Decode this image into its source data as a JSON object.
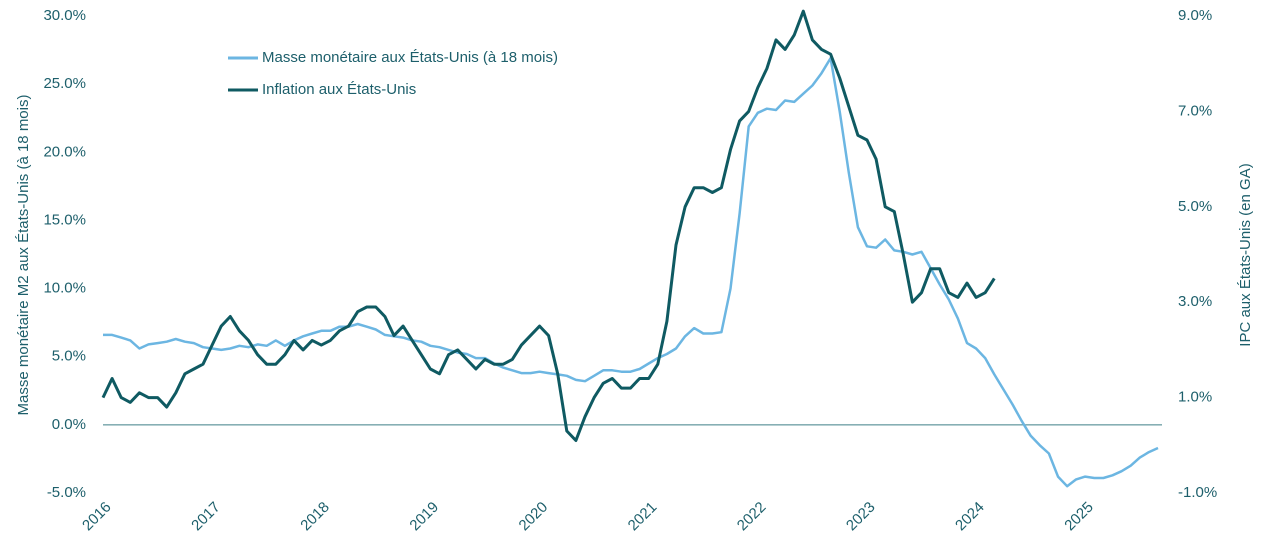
{
  "chart_data": {
    "type": "line",
    "y_label": "Masse monétaire M2 aux États-Unis (à 18 mois)",
    "y2_label": "IPC aux États-Unis (en GA)",
    "categories": [
      "2016",
      null,
      null,
      null,
      null,
      null,
      null,
      null,
      null,
      null,
      null,
      null,
      "2017",
      null,
      null,
      null,
      null,
      null,
      null,
      null,
      null,
      null,
      null,
      null,
      "2018",
      null,
      null,
      null,
      null,
      null,
      null,
      null,
      null,
      null,
      null,
      null,
      "2019",
      null,
      null,
      null,
      null,
      null,
      null,
      null,
      null,
      null,
      null,
      null,
      "2020",
      null,
      null,
      null,
      null,
      null,
      null,
      null,
      null,
      null,
      null,
      null,
      "2021",
      null,
      null,
      null,
      null,
      null,
      null,
      null,
      null,
      null,
      null,
      null,
      "2022",
      null,
      null,
      null,
      null,
      null,
      null,
      null,
      null,
      null,
      null,
      null,
      "2023",
      null,
      null,
      null,
      null,
      null,
      null,
      null,
      null,
      null,
      null,
      null,
      "2024",
      null,
      null,
      null,
      null,
      null,
      null,
      null,
      null,
      null,
      null,
      null,
      "2025",
      null,
      null,
      null,
      null,
      null,
      null,
      null,
      null
    ],
    "series": [
      {
        "name": "Masse monétaire aux États-Unis (à 18 mois)",
        "color": "#6cb6e2",
        "axis": "y",
        "values": [
          6.6,
          6.6,
          6.4,
          6.2,
          5.6,
          5.9,
          6.0,
          6.1,
          6.3,
          6.1,
          6.0,
          5.7,
          5.6,
          5.5,
          5.6,
          5.8,
          5.7,
          5.9,
          5.8,
          6.2,
          5.8,
          6.2,
          6.5,
          6.7,
          6.9,
          6.9,
          7.2,
          7.2,
          7.4,
          7.2,
          7.0,
          6.6,
          6.5,
          6.4,
          6.2,
          6.1,
          5.8,
          5.7,
          5.5,
          5.3,
          5.2,
          4.9,
          4.9,
          4.5,
          4.2,
          4.0,
          3.8,
          3.8,
          3.9,
          3.8,
          3.7,
          3.6,
          3.3,
          3.2,
          3.6,
          4.0,
          4.0,
          3.9,
          3.9,
          4.1,
          4.5,
          4.9,
          5.2,
          5.6,
          6.5,
          7.1,
          6.7,
          6.7,
          6.8,
          10.0,
          15.5,
          21.9,
          22.9,
          23.2,
          23.1,
          23.8,
          23.7,
          24.3,
          24.9,
          25.8,
          26.9,
          23.0,
          18.5,
          14.5,
          13.1,
          13.0,
          13.6,
          12.8,
          12.7,
          12.5,
          12.7,
          11.5,
          10.3,
          9.2,
          7.8,
          6.0,
          5.6,
          4.9,
          3.7,
          2.6,
          1.5,
          0.3,
          -0.8,
          -1.5,
          -2.1,
          -3.8,
          -4.5,
          -4.0,
          -3.8,
          -3.9,
          -3.9,
          -3.7,
          -3.4,
          -3.0,
          -2.4,
          -2.0,
          -1.7
        ]
      },
      {
        "name": "Inflation aux États-Unis",
        "color": "#0f5a62",
        "axis": "y2",
        "values": [
          1.0,
          1.4,
          1.0,
          0.9,
          1.1,
          1.0,
          1.0,
          0.8,
          1.1,
          1.5,
          1.6,
          1.7,
          2.1,
          2.5,
          2.7,
          2.4,
          2.2,
          1.9,
          1.7,
          1.7,
          1.9,
          2.2,
          2.0,
          2.2,
          2.1,
          2.2,
          2.4,
          2.5,
          2.8,
          2.9,
          2.9,
          2.7,
          2.3,
          2.5,
          2.2,
          1.9,
          1.6,
          1.5,
          1.9,
          2.0,
          1.8,
          1.6,
          1.8,
          1.7,
          1.7,
          1.8,
          2.1,
          2.3,
          2.5,
          2.3,
          1.5,
          0.3,
          0.1,
          0.6,
          1.0,
          1.3,
          1.4,
          1.2,
          1.2,
          1.4,
          1.4,
          1.7,
          2.6,
          4.2,
          5.0,
          5.4,
          5.4,
          5.3,
          5.4,
          6.2,
          6.8,
          7.0,
          7.5,
          7.9,
          8.5,
          8.3,
          8.6,
          9.1,
          8.5,
          8.3,
          8.2,
          7.7,
          7.1,
          6.5,
          6.4,
          6.0,
          5.0,
          4.9,
          4.0,
          3.0,
          3.2,
          3.7,
          3.7,
          3.2,
          3.1,
          3.4,
          3.1,
          3.2,
          3.5,
          null,
          null,
          null,
          null,
          null,
          null,
          null,
          null,
          null,
          null,
          null,
          null,
          null,
          null,
          null,
          null,
          null,
          null
        ]
      }
    ],
    "ylim": [
      -5,
      30
    ],
    "yticks": [
      {
        "value": -5,
        "label": "-5.0%"
      },
      {
        "value": 0,
        "label": "0.0%"
      },
      {
        "value": 5,
        "label": "5.0%"
      },
      {
        "value": 10,
        "label": "10.0%"
      },
      {
        "value": 15,
        "label": "15.0%"
      },
      {
        "value": 20,
        "label": "20.0%"
      },
      {
        "value": 25,
        "label": "25.0%"
      },
      {
        "value": 30,
        "label": "30.0%"
      }
    ],
    "y2lim": [
      -1,
      9
    ],
    "y2ticks": [
      {
        "value": -1,
        "label": "-1.0%"
      },
      {
        "value": 1,
        "label": "1.0%"
      },
      {
        "value": 3,
        "label": "3.0%"
      },
      {
        "value": 5,
        "label": "5.0%"
      },
      {
        "value": 7,
        "label": "7.0%"
      },
      {
        "value": 9,
        "label": "9.0%"
      }
    ],
    "legend": "upper left"
  }
}
